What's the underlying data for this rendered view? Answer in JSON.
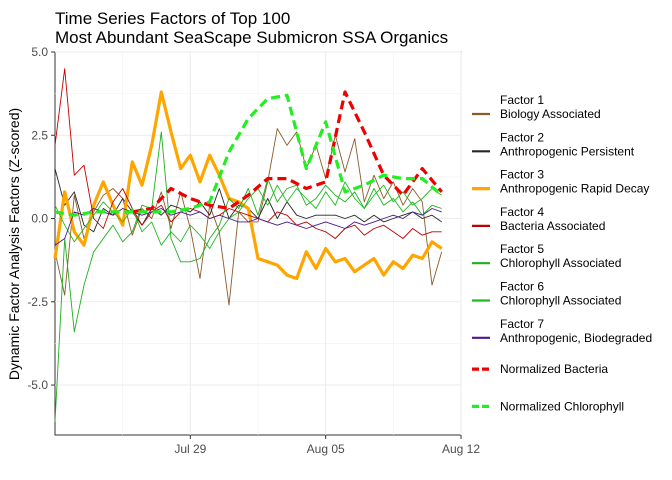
{
  "chart_data": {
    "type": "line",
    "title": [
      "Time Series Factors of Top 100",
      "Most Abundant SeaScape Submicron SSA Organics"
    ],
    "xlabel": "",
    "ylabel": "Dynamic Factor Analysis Factors (Z-scored)",
    "xlim": [
      "2019-07-22",
      "2019-08-12"
    ],
    "ylim": [
      -6.5,
      5.0
    ],
    "x_ticks": [
      {
        "date": "2019-07-29",
        "label": "Jul 29"
      },
      {
        "date": "2019-08-05",
        "label": "Aug 05"
      },
      {
        "date": "2019-08-12",
        "label": "Aug 12"
      }
    ],
    "y_ticks": [
      {
        "value": 5.0,
        "label": "5.0"
      },
      {
        "value": 2.5,
        "label": "2.5"
      },
      {
        "value": 0,
        "label": "0.0"
      },
      {
        "value": -2.5,
        "label": "-2.5"
      },
      {
        "value": -5.0,
        "label": "-5.0"
      }
    ],
    "grid": true,
    "legend_position": "right",
    "x": [
      "2019-07-22",
      "2019-07-23",
      "2019-07-24",
      "2019-07-25",
      "2019-07-26",
      "2019-07-27",
      "2019-07-28",
      "2019-07-29",
      "2019-07-30",
      "2019-07-31",
      "2019-08-01",
      "2019-08-02",
      "2019-08-03",
      "2019-08-04",
      "2019-08-05",
      "2019-08-06",
      "2019-08-07",
      "2019-08-08",
      "2019-08-09",
      "2019-08-10",
      "2019-08-11"
    ],
    "series": [
      {
        "name": "Factor 1",
        "name2": "Biology Associated",
        "color": "#8B5A2B",
        "style": "thin",
        "x": [
          "2019-07-22",
          "2019-07-22T12:00",
          "2019-07-23",
          "2019-07-23T12:00",
          "2019-07-24",
          "2019-07-24T12:00",
          "2019-07-25",
          "2019-07-25T12:00",
          "2019-07-26",
          "2019-07-26T12:00",
          "2019-07-27",
          "2019-07-27T12:00",
          "2019-07-28",
          "2019-07-28T12:00",
          "2019-07-29",
          "2019-07-29T12:00",
          "2019-07-30",
          "2019-07-30T12:00",
          "2019-07-31",
          "2019-07-31T12:00",
          "2019-08-01",
          "2019-08-01T12:00",
          "2019-08-02",
          "2019-08-02T12:00",
          "2019-08-03",
          "2019-08-03T12:00",
          "2019-08-04",
          "2019-08-04T12:00",
          "2019-08-05",
          "2019-08-05T12:00",
          "2019-08-06",
          "2019-08-06T12:00",
          "2019-08-07",
          "2019-08-07T12:00",
          "2019-08-08",
          "2019-08-08T12:00",
          "2019-08-09",
          "2019-08-09T12:00",
          "2019-08-10",
          "2019-08-10T12:00",
          "2019-08-11"
        ],
        "values": [
          -1.0,
          -2.3,
          0.7,
          -0.6,
          0.2,
          0.7,
          0.9,
          0.6,
          -0.5,
          0.3,
          0.0,
          0.8,
          -0.3,
          0.8,
          -0.3,
          -1.8,
          0.4,
          -0.4,
          -2.6,
          0.2,
          -0.1,
          -0.1,
          1.1,
          2.7,
          2.2,
          2.6,
          1.5,
          2.2,
          1.2,
          2.5,
          1.4,
          2.4,
          0.5,
          1.3,
          0.6,
          1.1,
          0.4,
          0.9,
          0.5,
          -2.0,
          -1.0
        ]
      },
      {
        "name": "Factor 2",
        "name2": "Anthropogenic Persistent",
        "color": "#262626",
        "style": "thin",
        "x": [
          "2019-07-22",
          "2019-07-22T12:00",
          "2019-07-23",
          "2019-07-23T12:00",
          "2019-07-24",
          "2019-07-24T12:00",
          "2019-07-25",
          "2019-07-25T12:00",
          "2019-07-26",
          "2019-07-26T12:00",
          "2019-07-27",
          "2019-07-27T12:00",
          "2019-07-28",
          "2019-07-28T12:00",
          "2019-07-29",
          "2019-07-29T12:00",
          "2019-07-30",
          "2019-07-30T12:00",
          "2019-07-31",
          "2019-07-31T12:00",
          "2019-08-01",
          "2019-08-01T12:00",
          "2019-08-02",
          "2019-08-02T12:00",
          "2019-08-03",
          "2019-08-03T12:00",
          "2019-08-04",
          "2019-08-04T12:00",
          "2019-08-05",
          "2019-08-05T12:00",
          "2019-08-06",
          "2019-08-06T12:00",
          "2019-08-07",
          "2019-08-07T12:00",
          "2019-08-08",
          "2019-08-08T12:00",
          "2019-08-09",
          "2019-08-09T12:00",
          "2019-08-10",
          "2019-08-10T12:00",
          "2019-08-11"
        ],
        "values": [
          1.5,
          0.4,
          0.8,
          -0.2,
          -0.4,
          0.3,
          0.1,
          0.6,
          0.2,
          -0.2,
          0.3,
          0.1,
          0.4,
          0.3,
          0.2,
          0.5,
          0.1,
          0.9,
          0.0,
          0.4,
          0.3,
          0.0,
          0.6,
          0.0,
          0.5,
          0.1,
          0.0,
          0.1,
          0.1,
          0.1,
          0.0,
          0.1,
          -0.1,
          0.1,
          -0.1,
          0.0,
          0.1,
          0.2,
          0.0,
          0.1,
          -0.1
        ]
      },
      {
        "name": "Factor 3",
        "name2": "Anthropogenic Rapid Decay",
        "color": "#FFA500",
        "style": "thick",
        "x": [
          "2019-07-22",
          "2019-07-22T12:00",
          "2019-07-23",
          "2019-07-23T12:00",
          "2019-07-24",
          "2019-07-24T12:00",
          "2019-07-25",
          "2019-07-25T12:00",
          "2019-07-26",
          "2019-07-26T12:00",
          "2019-07-27",
          "2019-07-27T12:00",
          "2019-07-28",
          "2019-07-28T12:00",
          "2019-07-29",
          "2019-07-29T12:00",
          "2019-07-30",
          "2019-07-30T12:00",
          "2019-07-31",
          "2019-07-31T12:00",
          "2019-08-01",
          "2019-08-01T12:00",
          "2019-08-02",
          "2019-08-02T12:00",
          "2019-08-03",
          "2019-08-03T12:00",
          "2019-08-04",
          "2019-08-04T12:00",
          "2019-08-05",
          "2019-08-05T12:00",
          "2019-08-06",
          "2019-08-06T12:00",
          "2019-08-07",
          "2019-08-07T12:00",
          "2019-08-08",
          "2019-08-08T12:00",
          "2019-08-09",
          "2019-08-09T12:00",
          "2019-08-10",
          "2019-08-10T12:00",
          "2019-08-11"
        ],
        "values": [
          -1.2,
          0.8,
          -0.4,
          -0.8,
          0.4,
          1.1,
          0.4,
          -0.2,
          1.7,
          1.0,
          2.2,
          3.8,
          2.6,
          1.5,
          1.9,
          1.1,
          1.9,
          1.3,
          0.6,
          0.5,
          0.3,
          -1.2,
          -1.3,
          -1.4,
          -1.7,
          -1.8,
          -1.0,
          -1.5,
          -0.9,
          -1.3,
          -1.2,
          -1.6,
          -1.4,
          -1.2,
          -1.7,
          -1.3,
          -1.5,
          -1.1,
          -1.2,
          -0.7,
          -0.9
        ]
      },
      {
        "name": "Factor 4",
        "name2": "Bacteria Associated",
        "color": "#C00000",
        "style": "thin",
        "x": [
          "2019-07-22",
          "2019-07-22T12:00",
          "2019-07-23",
          "2019-07-23T12:00",
          "2019-07-24",
          "2019-07-24T12:00",
          "2019-07-25",
          "2019-07-25T12:00",
          "2019-07-26",
          "2019-07-26T12:00",
          "2019-07-27",
          "2019-07-27T12:00",
          "2019-07-28",
          "2019-07-28T12:00",
          "2019-07-29",
          "2019-07-29T12:00",
          "2019-07-30",
          "2019-07-30T12:00",
          "2019-07-31",
          "2019-07-31T12:00",
          "2019-08-01",
          "2019-08-01T12:00",
          "2019-08-02",
          "2019-08-02T12:00",
          "2019-08-03",
          "2019-08-03T12:00",
          "2019-08-04",
          "2019-08-04T12:00",
          "2019-08-05",
          "2019-08-05T12:00",
          "2019-08-06",
          "2019-08-06T12:00",
          "2019-08-07",
          "2019-08-07T12:00",
          "2019-08-08",
          "2019-08-08T12:00",
          "2019-08-09",
          "2019-08-09T12:00",
          "2019-08-10",
          "2019-08-10T12:00",
          "2019-08-11"
        ],
        "values": [
          2.2,
          4.5,
          1.3,
          1.6,
          0.0,
          -0.3,
          0.5,
          0.9,
          0.3,
          -0.2,
          0.2,
          0.4,
          -0.1,
          0.2,
          0.3,
          0.2,
          0.0,
          0.1,
          0.3,
          0.2,
          0.1,
          0.0,
          -0.1,
          0.2,
          0.1,
          -0.2,
          -0.1,
          -0.3,
          -0.4,
          -0.6,
          -0.3,
          -0.2,
          -0.5,
          -0.3,
          -0.2,
          -0.4,
          -0.6,
          -0.3,
          -0.5,
          -0.4,
          -0.4
        ]
      },
      {
        "name": "Factor 5",
        "name2": "Chlorophyll Associated",
        "color": "#1FAF1F",
        "style": "thin",
        "x": [
          "2019-07-22",
          "2019-07-22T12:00",
          "2019-07-23",
          "2019-07-23T12:00",
          "2019-07-24",
          "2019-07-24T12:00",
          "2019-07-25",
          "2019-07-25T12:00",
          "2019-07-26",
          "2019-07-26T12:00",
          "2019-07-27",
          "2019-07-27T12:00",
          "2019-07-28",
          "2019-07-28T12:00",
          "2019-07-29",
          "2019-07-29T12:00",
          "2019-07-30",
          "2019-07-30T12:00",
          "2019-07-31",
          "2019-07-31T12:00",
          "2019-08-01",
          "2019-08-01T12:00",
          "2019-08-02",
          "2019-08-02T12:00",
          "2019-08-03",
          "2019-08-03T12:00",
          "2019-08-04",
          "2019-08-04T12:00",
          "2019-08-05",
          "2019-08-05T12:00",
          "2019-08-06",
          "2019-08-06T12:00",
          "2019-08-07",
          "2019-08-07T12:00",
          "2019-08-08",
          "2019-08-08T12:00",
          "2019-08-09",
          "2019-08-09T12:00",
          "2019-08-10",
          "2019-08-10T12:00",
          "2019-08-11"
        ],
        "values": [
          -6.1,
          -0.6,
          -3.4,
          -2.0,
          -1.0,
          -0.6,
          -0.2,
          -0.7,
          -0.4,
          0.4,
          0.3,
          2.6,
          -0.6,
          -1.3,
          -1.3,
          -1.2,
          -0.6,
          -0.2,
          0.6,
          0.3,
          0.9,
          0.1,
          1.2,
          0.5,
          0.9,
          1.0,
          0.4,
          0.6,
          1.0,
          0.7,
          0.5,
          0.8,
          0.3,
          0.9,
          0.4,
          0.6,
          0.2,
          0.5,
          0.1,
          0.4,
          0.3
        ]
      },
      {
        "name": "Factor 6",
        "name2": "Chlorophyll Associated",
        "color": "#22BB22",
        "style": "thin",
        "x": [
          "2019-07-22",
          "2019-07-22T12:00",
          "2019-07-23",
          "2019-07-23T12:00",
          "2019-07-24",
          "2019-07-24T12:00",
          "2019-07-25",
          "2019-07-25T12:00",
          "2019-07-26",
          "2019-07-26T12:00",
          "2019-07-27",
          "2019-07-27T12:00",
          "2019-07-28",
          "2019-07-28T12:00",
          "2019-07-29",
          "2019-07-29T12:00",
          "2019-07-30",
          "2019-07-30T12:00",
          "2019-07-31",
          "2019-07-31T12:00",
          "2019-08-01",
          "2019-08-01T12:00",
          "2019-08-02",
          "2019-08-02T12:00",
          "2019-08-03",
          "2019-08-03T12:00",
          "2019-08-04",
          "2019-08-04T12:00",
          "2019-08-05",
          "2019-08-05T12:00",
          "2019-08-06",
          "2019-08-06T12:00",
          "2019-08-07",
          "2019-08-07T12:00",
          "2019-08-08",
          "2019-08-08T12:00",
          "2019-08-09",
          "2019-08-09T12:00",
          "2019-08-10",
          "2019-08-10T12:00",
          "2019-08-11"
        ],
        "values": [
          0.4,
          -0.2,
          -0.7,
          -0.3,
          0.1,
          0.5,
          0.2,
          -0.1,
          0.3,
          -0.4,
          -0.1,
          -0.8,
          -0.4,
          -0.7,
          -0.2,
          -0.5,
          -0.9,
          -0.4,
          0.0,
          0.2,
          0.6,
          0.9,
          0.4,
          1.0,
          0.5,
          0.9,
          0.6,
          0.3,
          0.8,
          0.4,
          1.1,
          0.6,
          0.3,
          0.7,
          1.0,
          0.5,
          0.8,
          0.4,
          0.6,
          0.9,
          0.7
        ]
      },
      {
        "name": "Factor 7",
        "name2": "Anthropogenic, Biodegraded",
        "color": "#4B1A8C",
        "style": "thin",
        "x": [
          "2019-07-22",
          "2019-07-22T12:00",
          "2019-07-23",
          "2019-07-23T12:00",
          "2019-07-24",
          "2019-07-24T12:00",
          "2019-07-25",
          "2019-07-25T12:00",
          "2019-07-26",
          "2019-07-26T12:00",
          "2019-07-27",
          "2019-07-27T12:00",
          "2019-07-28",
          "2019-07-28T12:00",
          "2019-07-29",
          "2019-07-29T12:00",
          "2019-07-30",
          "2019-07-30T12:00",
          "2019-07-31",
          "2019-07-31T12:00",
          "2019-08-01",
          "2019-08-01T12:00",
          "2019-08-02",
          "2019-08-02T12:00",
          "2019-08-03",
          "2019-08-03T12:00",
          "2019-08-04",
          "2019-08-04T12:00",
          "2019-08-05",
          "2019-08-05T12:00",
          "2019-08-06",
          "2019-08-06T12:00",
          "2019-08-07",
          "2019-08-07T12:00",
          "2019-08-08",
          "2019-08-08T12:00",
          "2019-08-09",
          "2019-08-09T12:00",
          "2019-08-10",
          "2019-08-10T12:00",
          "2019-08-11"
        ],
        "values": [
          -0.8,
          -0.6,
          0.2,
          0.1,
          0.3,
          0.2,
          0.1,
          0.3,
          0.2,
          0.1,
          0.2,
          0.3,
          0.1,
          0.2,
          0.1,
          0.2,
          0.0,
          0.1,
          0.0,
          -0.1,
          -0.1,
          0.0,
          -0.1,
          -0.2,
          -0.1,
          -0.2,
          -0.3,
          -0.2,
          -0.1,
          -0.2,
          -0.3,
          -0.1,
          -0.2,
          -0.1,
          0.0,
          0.1,
          0.0,
          0.2,
          0.1,
          0.3,
          0.2
        ]
      },
      {
        "name": "Normalized Bacteria",
        "name2": "",
        "color": "#EE0000",
        "style": "dashed",
        "x": [
          "2019-07-26",
          "2019-07-27",
          "2019-07-28",
          "2019-07-29",
          "2019-07-30",
          "2019-07-31",
          "2019-08-01",
          "2019-08-02",
          "2019-08-03",
          "2019-08-04",
          "2019-08-05",
          "2019-08-06",
          "2019-08-07",
          "2019-08-08",
          "2019-08-09",
          "2019-08-10",
          "2019-08-11"
        ],
        "values": [
          0.2,
          0.3,
          0.9,
          0.6,
          0.4,
          0.3,
          0.7,
          1.2,
          1.2,
          0.9,
          1.1,
          3.8,
          2.6,
          1.3,
          0.7,
          1.5,
          0.8
        ]
      },
      {
        "name": "Normalized Chlorophyll",
        "name2": "",
        "color": "#22EE22",
        "style": "dashed",
        "x": [
          "2019-07-22",
          "2019-07-23",
          "2019-07-24",
          "2019-07-25",
          "2019-07-26",
          "2019-07-27",
          "2019-07-28",
          "2019-07-29",
          "2019-07-30",
          "2019-07-31",
          "2019-08-01",
          "2019-08-02",
          "2019-08-03",
          "2019-08-04",
          "2019-08-05",
          "2019-08-06",
          "2019-08-07",
          "2019-08-08",
          "2019-08-09",
          "2019-08-10",
          "2019-08-11"
        ],
        "values": [
          0.2,
          0.1,
          0.2,
          0.2,
          0.2,
          0.2,
          0.2,
          0.3,
          0.5,
          2.0,
          3.0,
          3.6,
          3.7,
          1.5,
          2.9,
          0.8,
          1.0,
          1.3,
          1.2,
          1.2,
          0.7
        ]
      }
    ]
  }
}
